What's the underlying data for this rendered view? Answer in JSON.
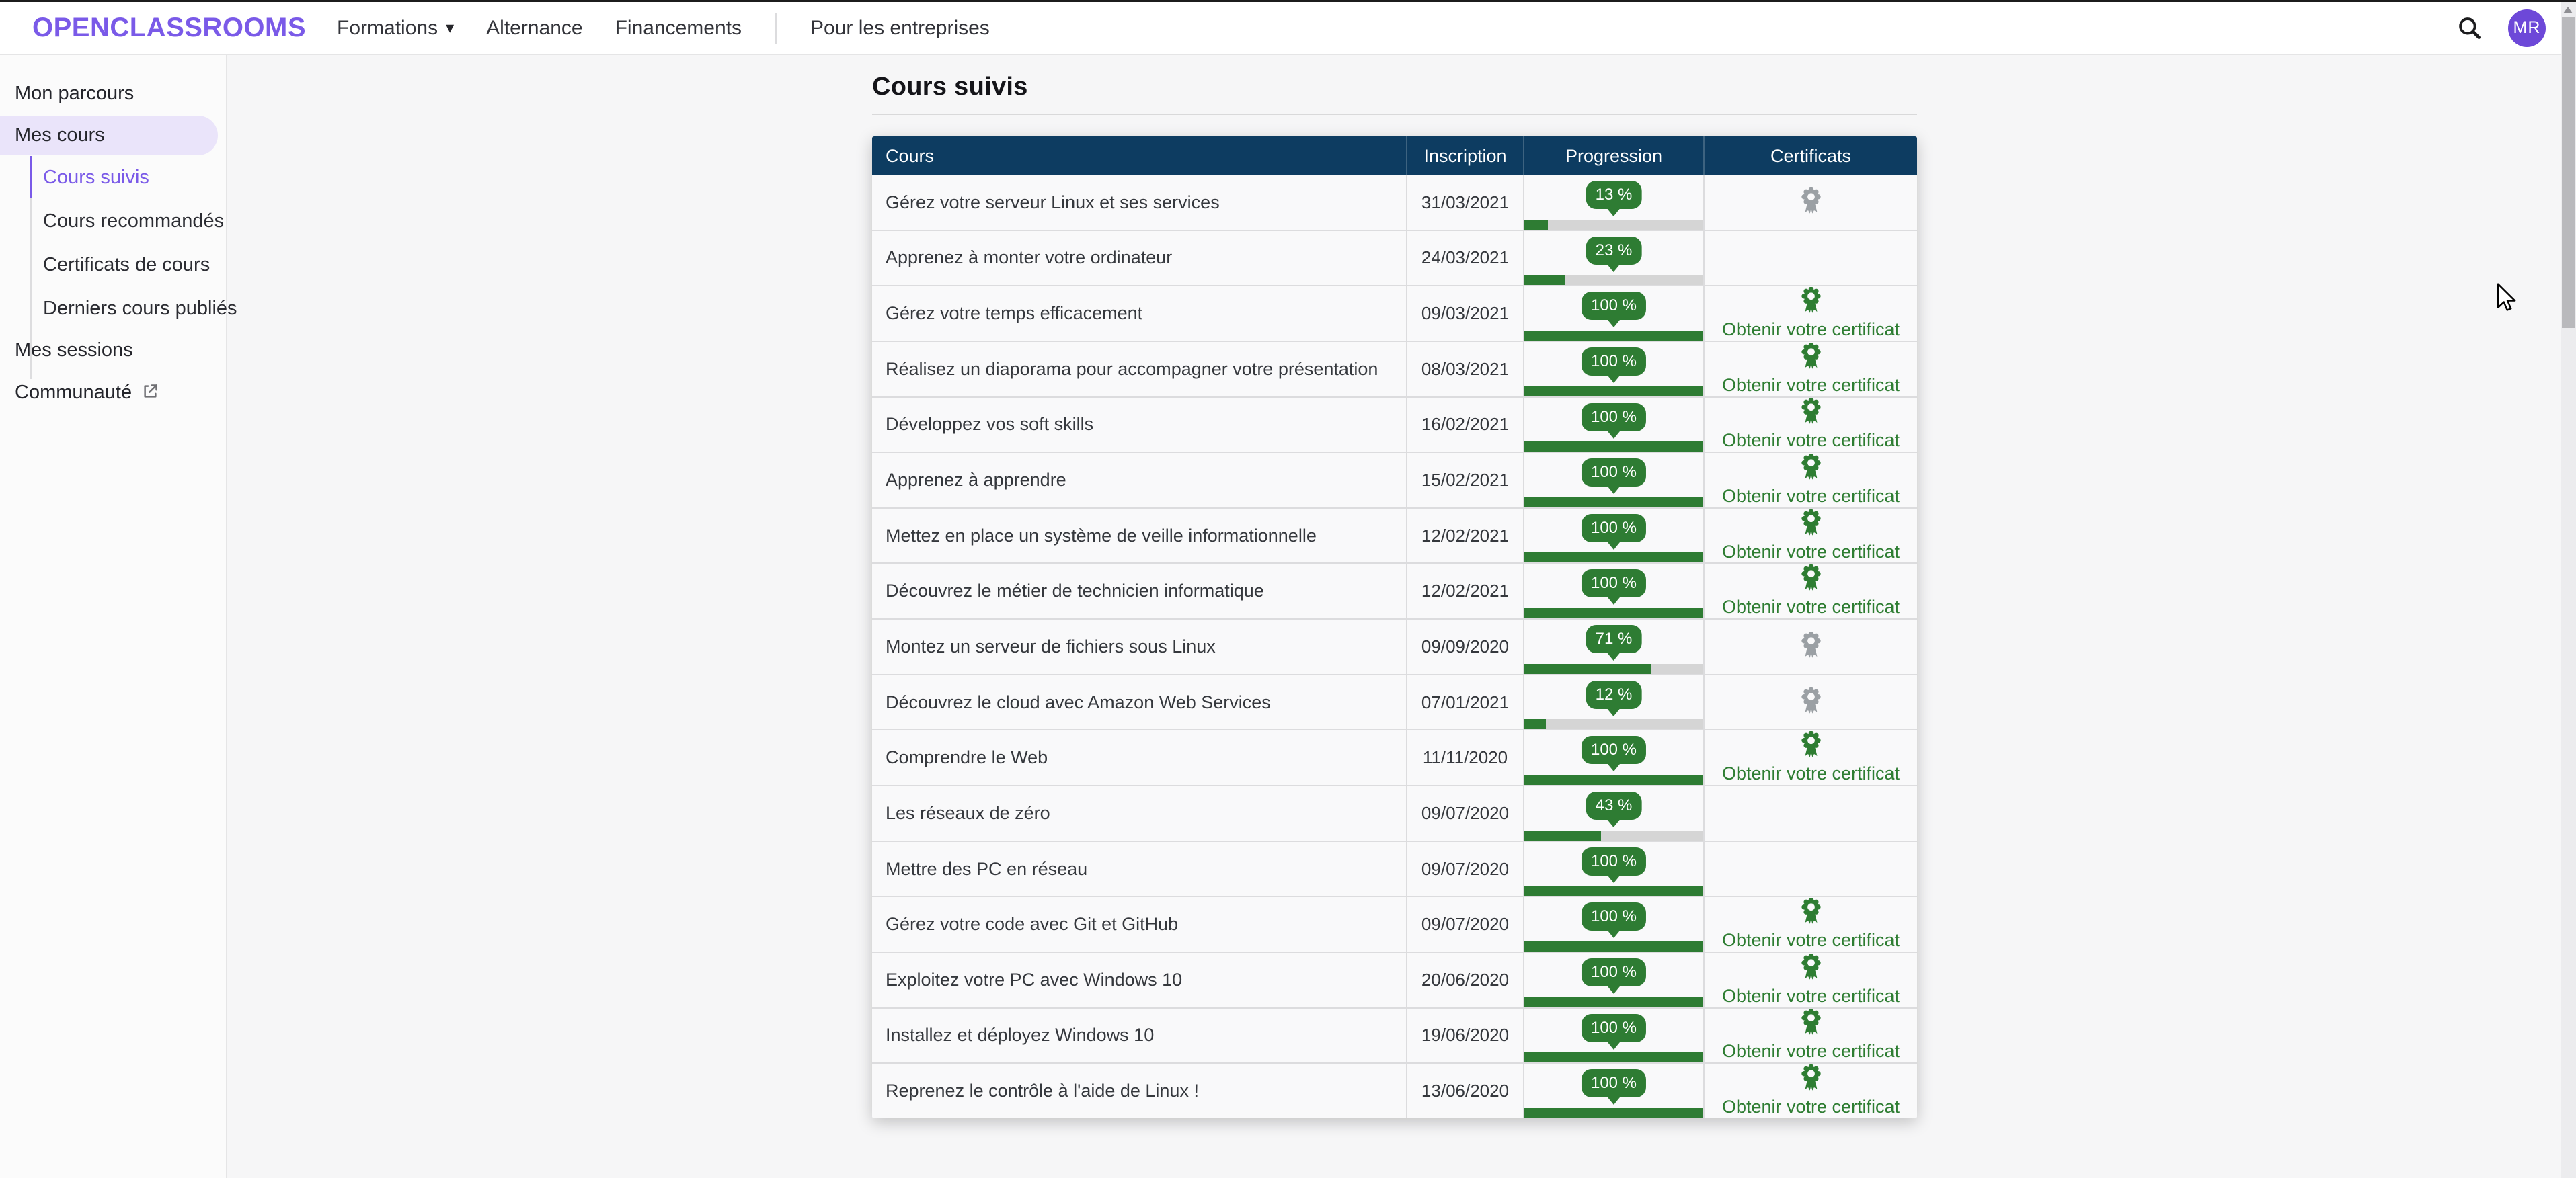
{
  "colors": {
    "brand-purple": "#7a5ae8",
    "avatar-purple": "#6d48d8",
    "pill-lavender": "#eae4fa",
    "header-navy": "#0d3c61",
    "green": "#2e7c33",
    "green-link": "#2e7d32",
    "grey-ribbon": "#9ba0a4",
    "bar-track": "#d5d5d5"
  },
  "topnav": {
    "logo": "OPENCLASSROOMS",
    "items": [
      {
        "label": "Formations"
      },
      {
        "label": "Alternance"
      },
      {
        "label": "Financements"
      },
      {
        "label": "Pour les entreprises"
      }
    ],
    "avatar_initials": "MR"
  },
  "sidebar": {
    "items": [
      {
        "label": "Mon parcours"
      },
      {
        "label": "Mes cours"
      },
      {
        "label": "Cours suivis"
      },
      {
        "label": "Cours recommandés"
      },
      {
        "label": "Certificats de cours"
      },
      {
        "label": "Derniers cours publiés"
      },
      {
        "label": "Mes sessions"
      },
      {
        "label": "Communauté"
      }
    ]
  },
  "page": {
    "title": "Cours suivis"
  },
  "table": {
    "headers": [
      "Cours",
      "Inscription",
      "Progression",
      "Certificats"
    ],
    "certificate_link_label": "Obtenir votre certificat",
    "rows": [
      {
        "course": "Gérez votre serveur Linux et ses services",
        "inscription": "31/03/2021",
        "percent": 13,
        "percent_label": "13 %",
        "certificate": "locked"
      },
      {
        "course": "Apprenez à monter votre ordinateur",
        "inscription": "24/03/2021",
        "percent": 23,
        "percent_label": "23 %",
        "certificate": "none"
      },
      {
        "course": "Gérez votre temps efficacement",
        "inscription": "09/03/2021",
        "percent": 100,
        "percent_label": "100 %",
        "certificate": "link"
      },
      {
        "course": "Réalisez un diaporama pour accompagner votre présentation",
        "inscription": "08/03/2021",
        "percent": 100,
        "percent_label": "100 %",
        "certificate": "link"
      },
      {
        "course": "Développez vos soft skills",
        "inscription": "16/02/2021",
        "percent": 100,
        "percent_label": "100 %",
        "certificate": "link"
      },
      {
        "course": "Apprenez à apprendre",
        "inscription": "15/02/2021",
        "percent": 100,
        "percent_label": "100 %",
        "certificate": "link"
      },
      {
        "course": "Mettez en place un système de veille informationnelle",
        "inscription": "12/02/2021",
        "percent": 100,
        "percent_label": "100 %",
        "certificate": "link"
      },
      {
        "course": "Découvrez le métier de technicien informatique",
        "inscription": "12/02/2021",
        "percent": 100,
        "percent_label": "100 %",
        "certificate": "link"
      },
      {
        "course": "Montez un serveur de fichiers sous Linux",
        "inscription": "09/09/2020",
        "percent": 71,
        "percent_label": "71 %",
        "certificate": "locked"
      },
      {
        "course": "Découvrez le cloud avec Amazon Web Services",
        "inscription": "07/01/2021",
        "percent": 12,
        "percent_label": "12 %",
        "certificate": "locked"
      },
      {
        "course": "Comprendre le Web",
        "inscription": "11/11/2020",
        "percent": 100,
        "percent_label": "100 %",
        "certificate": "link"
      },
      {
        "course": "Les réseaux de zéro",
        "inscription": "09/07/2020",
        "percent": 43,
        "percent_label": "43 %",
        "certificate": "none"
      },
      {
        "course": "Mettre des PC en réseau",
        "inscription": "09/07/2020",
        "percent": 100,
        "percent_label": "100 %",
        "certificate": "none"
      },
      {
        "course": "Gérez votre code avec Git et GitHub",
        "inscription": "09/07/2020",
        "percent": 100,
        "percent_label": "100 %",
        "certificate": "link"
      },
      {
        "course": "Exploitez votre PC avec Windows 10",
        "inscription": "20/06/2020",
        "percent": 100,
        "percent_label": "100 %",
        "certificate": "link"
      },
      {
        "course": "Installez et déployez Windows 10",
        "inscription": "19/06/2020",
        "percent": 100,
        "percent_label": "100 %",
        "certificate": "link"
      },
      {
        "course": "Reprenez le contrôle à l'aide de Linux !",
        "inscription": "13/06/2020",
        "percent": 100,
        "percent_label": "100 %",
        "certificate": "link"
      }
    ]
  }
}
